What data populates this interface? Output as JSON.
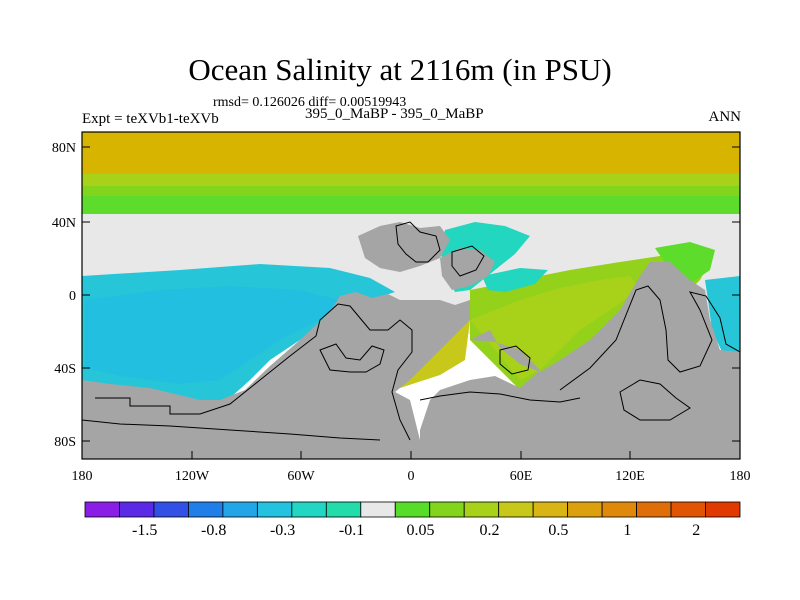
{
  "title": "Ocean Salinity at 2116m (in PSU)",
  "stats": "rmsd= 0.126026 diff= 0.00519943",
  "left_label": "Expt = teXVb1-teXVb",
  "center_label": "395_0_MaBP - 395_0_MaBP",
  "right_label": "ANN",
  "axes": {
    "lat_ticks": [
      "80N",
      "40N",
      "0",
      "40S",
      "80S"
    ],
    "lon_ticks": [
      "180",
      "120W",
      "60W",
      "0",
      "60E",
      "120E",
      "180"
    ]
  },
  "colors": {
    "land": "#a5a5a5",
    "near_zero": "#e8e8e8",
    "positive_high": "#d7b400",
    "positive_mid": "#93d11a",
    "positive_low": "#5ddc2c",
    "negative_low": "#22d6bf",
    "negative_mid": "#26c6d8"
  },
  "colorbar": {
    "colors": [
      "#8a1ee6",
      "#5a2ae6",
      "#3250e6",
      "#1f7ee8",
      "#22a6e8",
      "#22c2e0",
      "#22d6c4",
      "#22dcaa",
      "#e8e8e8",
      "#58dc2a",
      "#82d41c",
      "#a8d21a",
      "#c8c81a",
      "#d8b414",
      "#dca00e",
      "#e0880a",
      "#e06e08",
      "#e05404",
      "#e03a00"
    ],
    "labels": [
      "-1.5",
      "-0.8",
      "-0.3",
      "-0.1",
      "0.05",
      "0.2",
      "0.5",
      "1",
      "2"
    ]
  }
}
